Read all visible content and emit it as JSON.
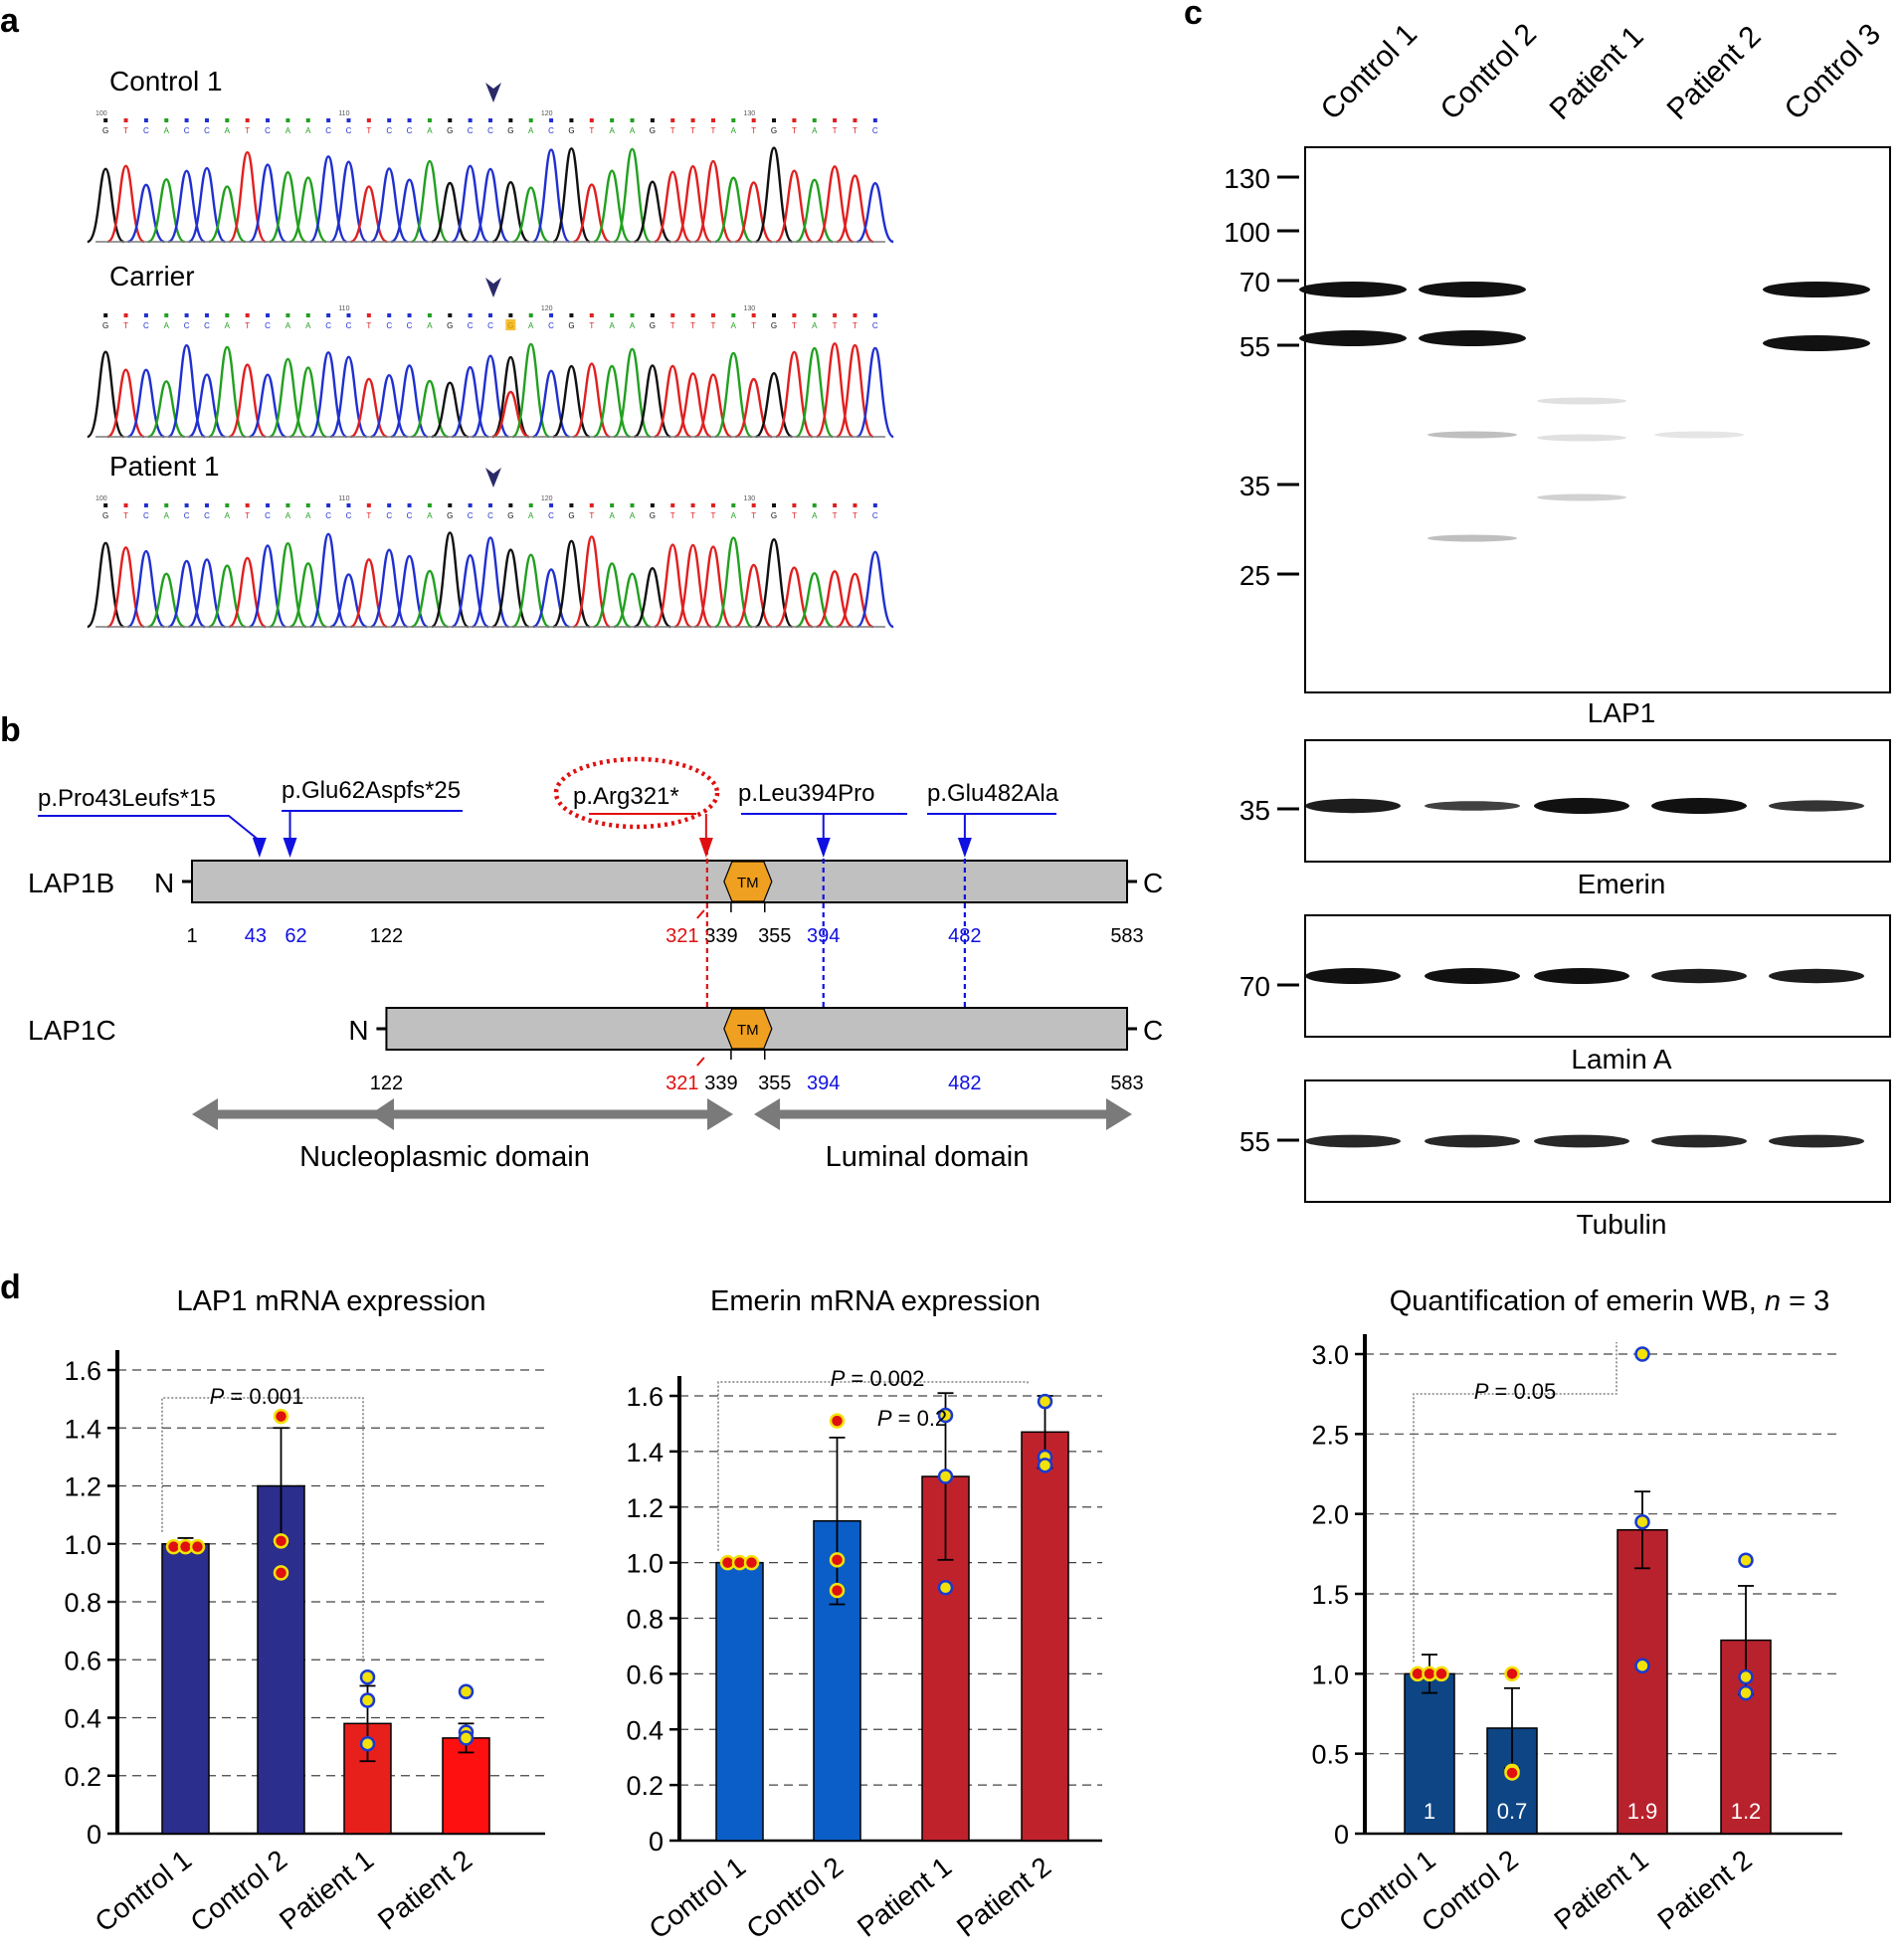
{
  "panel_labels": {
    "a": "a",
    "b": "b",
    "c": "c",
    "d": "d"
  },
  "panel_a": {
    "traces": [
      {
        "label": "Control 1",
        "pos": [
          "100",
          "110",
          "120",
          "130"
        ],
        "highlight": false
      },
      {
        "label": "Carrier",
        "pos": [
          "110",
          "120",
          "130"
        ],
        "highlight": true
      },
      {
        "label": "Patient 1",
        "pos": [
          "100",
          "110",
          "120",
          "130"
        ],
        "highlight": false
      }
    ],
    "trace_colors": {
      "A": "#22a020",
      "C": "#2030d0",
      "G": "#111111",
      "T": "#e02020"
    },
    "arrow_color": "#2a2a6a"
  },
  "panel_b": {
    "mutations": [
      {
        "label": "p.Pro43Leufs*15",
        "color": "#1010e0"
      },
      {
        "label": "p.Glu62Aspfs*25",
        "color": "#1010e0"
      },
      {
        "label": "p.Arg321*",
        "color": "#e01010"
      },
      {
        "label": "p.Leu394Pro",
        "color": "#1010e0"
      },
      {
        "label": "p.Glu482Ala",
        "color": "#1010e0"
      }
    ],
    "isoforms": [
      {
        "name": "LAP1B",
        "n": "N",
        "c": "C",
        "positions": [
          {
            "v": "1",
            "c": "#000000"
          },
          {
            "v": "43",
            "c": "#1010e0"
          },
          {
            "v": "62",
            "c": "#1010e0"
          },
          {
            "v": "122",
            "c": "#000000"
          },
          {
            "v": "321",
            "c": "#e01010"
          },
          {
            "v": "339",
            "c": "#000000"
          },
          {
            "v": "355",
            "c": "#000000"
          },
          {
            "v": "394",
            "c": "#1010e0"
          },
          {
            "v": "482",
            "c": "#1010e0"
          },
          {
            "v": "583",
            "c": "#000000"
          }
        ]
      },
      {
        "name": "LAP1C",
        "n": "N",
        "c": "C",
        "positions": [
          {
            "v": "122",
            "c": "#000000"
          },
          {
            "v": "321",
            "c": "#e01010"
          },
          {
            "v": "339",
            "c": "#000000"
          },
          {
            "v": "355",
            "c": "#000000"
          },
          {
            "v": "394",
            "c": "#1010e0"
          },
          {
            "v": "482",
            "c": "#1010e0"
          },
          {
            "v": "583",
            "c": "#000000"
          }
        ]
      }
    ],
    "tm": "TM",
    "domains": [
      "Nucleoplasmic domain",
      "Luminal domain"
    ],
    "tm_color": "#f0a020",
    "bar_color": "#c0c0c0"
  },
  "panel_c": {
    "lanes": [
      "Control 1",
      "Control 2",
      "Patient 1",
      "Patient 2",
      "Control 3"
    ],
    "markers": [
      "130",
      "100",
      "70",
      "55",
      "35",
      "25"
    ],
    "blots": [
      {
        "label": "LAP1",
        "marker": ""
      },
      {
        "label": "Emerin",
        "marker": "35"
      },
      {
        "label": "Lamin A",
        "marker": "70"
      },
      {
        "label": "Tubulin",
        "marker": "55"
      }
    ]
  },
  "panel_d": {
    "charts_meta": [
      {
        "p_labels": [
          "P = 0.001"
        ]
      },
      {
        "p_labels": [
          "P = 0.002",
          "P = 0.2"
        ]
      },
      {
        "p_labels": [
          "P = 0.05"
        ]
      }
    ]
  },
  "chart_data": [
    {
      "type": "bar",
      "title": "LAP1 mRNA expression",
      "categories": [
        "Control 1",
        "Control 2",
        "Patient 1",
        "Patient 2"
      ],
      "values": [
        1.0,
        1.2,
        0.38,
        0.33
      ],
      "errors": [
        0.02,
        0.2,
        0.13,
        0.05
      ],
      "points": [
        [
          0.99,
          0.99,
          0.99
        ],
        [
          1.44,
          1.01,
          0.9
        ],
        [
          0.54,
          0.46,
          0.31
        ],
        [
          0.49,
          0.35,
          0.33
        ]
      ],
      "point_fill": [
        "#e01010",
        "#e01010",
        "#f2e20a",
        "#f2e20a"
      ],
      "point_stroke": [
        "#f2e20a",
        "#f2e20a",
        "#1a3ad0",
        "#1a3ad0"
      ],
      "colors": [
        "#2b2e8c",
        "#2b2e8c",
        "#e8201c",
        "#ff1010"
      ],
      "ylim": [
        0,
        1.6
      ],
      "yticks": [
        "0",
        "0.2",
        "0.4",
        "0.6",
        "0.8",
        "1.0",
        "1.2",
        "1.4",
        "1.6"
      ],
      "bar_labels": [
        "",
        "",
        "",
        ""
      ]
    },
    {
      "type": "bar",
      "title": "Emerin mRNA expression",
      "categories": [
        "Control 1",
        "Control 2",
        "Patient 1",
        "Patient 2"
      ],
      "values": [
        1.0,
        1.15,
        1.31,
        1.47
      ],
      "errors": [
        0.01,
        0.3,
        0.3,
        0.13
      ],
      "points": [
        [
          1.0,
          1.0,
          1.0
        ],
        [
          1.51,
          1.01,
          0.9
        ],
        [
          1.53,
          1.31,
          0.91
        ],
        [
          1.58,
          1.38,
          1.35
        ]
      ],
      "point_fill": [
        "#e01010",
        "#e01010",
        "#f2e20a",
        "#f2e20a"
      ],
      "point_stroke": [
        "#f2e20a",
        "#f2e20a",
        "#1a3ad0",
        "#1a3ad0"
      ],
      "colors": [
        "#0b5ec8",
        "#0b5ec8",
        "#c0222c",
        "#c0222c"
      ],
      "ylim": [
        0,
        1.6
      ],
      "yticks": [
        "0",
        "0.2",
        "0.4",
        "0.6",
        "0.8",
        "1.0",
        "1.2",
        "1.4",
        "1.6"
      ],
      "bar_labels": [
        "",
        "",
        "",
        ""
      ]
    },
    {
      "type": "bar",
      "title": "Quantification of emerin WB, ",
      "title_italic": "n",
      "title_suffix": " = 3",
      "categories": [
        "Control 1",
        "Control 2",
        "Patient 1",
        "Patient 2"
      ],
      "values": [
        1.0,
        0.66,
        1.9,
        1.21
      ],
      "errors": [
        0.12,
        0.25,
        0.24,
        0.34
      ],
      "points": [
        [
          1.0,
          1.0,
          1.0
        ],
        [
          1.0,
          0.39,
          0.38
        ],
        [
          3.0,
          1.95,
          1.05
        ],
        [
          1.71,
          0.98,
          0.88
        ]
      ],
      "point_fill": [
        "#e01010",
        "#e01010",
        "#f2e20a",
        "#f2e20a"
      ],
      "point_stroke": [
        "#f2e20a",
        "#f2e20a",
        "#1a3ad0",
        "#1a3ad0"
      ],
      "colors": [
        "#0e4585",
        "#0e4585",
        "#b8222c",
        "#b8222c"
      ],
      "ylim": [
        0,
        3.0
      ],
      "yticks": [
        "0",
        "0.5",
        "1.0",
        "1.5",
        "2.0",
        "2.5",
        "3.0"
      ],
      "bar_labels": [
        "1",
        "0.7",
        "1.9",
        "1.2"
      ]
    }
  ]
}
